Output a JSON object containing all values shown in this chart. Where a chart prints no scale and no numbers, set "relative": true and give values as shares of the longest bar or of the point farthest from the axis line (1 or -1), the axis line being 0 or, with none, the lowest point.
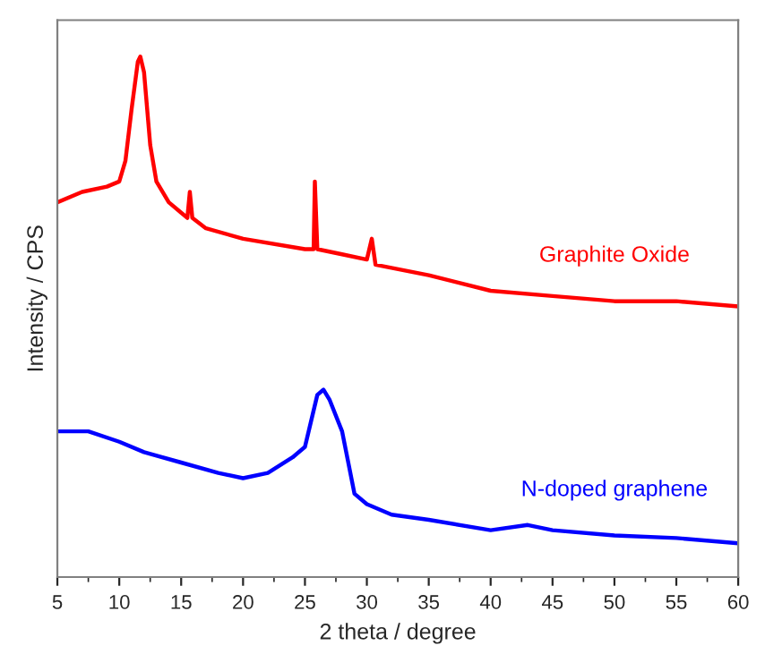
{
  "chart_data": {
    "type": "line",
    "relative": true,
    "xlabel": "2 theta / degree",
    "ylabel": "Intensity / CPS",
    "xlim": [
      5,
      60
    ],
    "xticks": [
      5,
      10,
      15,
      20,
      25,
      30,
      35,
      40,
      45,
      50,
      55,
      60
    ],
    "grid": false,
    "legend": false,
    "series": [
      {
        "name": "Graphite Oxide",
        "color": "#ff0000",
        "x": [
          5,
          7,
          9,
          10,
          10.5,
          11,
          11.5,
          11.7,
          12,
          12.5,
          13,
          14,
          15,
          15.5,
          15.7,
          15.9,
          17,
          20,
          25,
          25.7,
          25.8,
          26.0,
          28,
          30,
          30.4,
          30.7,
          35,
          40,
          45,
          50,
          55,
          60
        ],
        "values": [
          0.72,
          0.74,
          0.75,
          0.76,
          0.8,
          0.9,
          0.99,
          1.0,
          0.97,
          0.83,
          0.76,
          0.72,
          0.7,
          0.69,
          0.74,
          0.69,
          0.67,
          0.65,
          0.63,
          0.63,
          0.76,
          0.63,
          0.62,
          0.61,
          0.65,
          0.6,
          0.58,
          0.55,
          0.54,
          0.53,
          0.53,
          0.52
        ]
      },
      {
        "name": "N-doped graphene",
        "color": "#0000ff",
        "x": [
          5,
          7.5,
          10,
          12,
          15,
          18,
          20,
          22,
          24,
          25,
          26,
          26.5,
          27,
          28,
          29,
          30,
          32,
          35,
          40,
          43,
          45,
          50,
          55,
          60
        ],
        "values": [
          0.28,
          0.28,
          0.26,
          0.24,
          0.22,
          0.2,
          0.19,
          0.2,
          0.23,
          0.25,
          0.35,
          0.36,
          0.34,
          0.28,
          0.16,
          0.14,
          0.12,
          0.11,
          0.09,
          0.1,
          0.09,
          0.08,
          0.075,
          0.065
        ]
      }
    ]
  }
}
